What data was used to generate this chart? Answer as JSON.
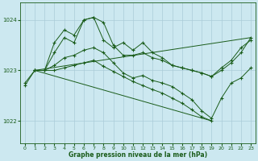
{
  "title": "Graphe pression niveau de la mer (hPa)",
  "bg_color": "#cce8f0",
  "line_color": "#1a5c1a",
  "grid_color": "#aaccd8",
  "xlim": [
    -0.5,
    23.5
  ],
  "ylim": [
    1021.55,
    1024.35
  ],
  "yticks": [
    1022,
    1023,
    1024
  ],
  "xticks": [
    0,
    1,
    2,
    3,
    4,
    5,
    6,
    7,
    8,
    9,
    10,
    11,
    12,
    13,
    14,
    15,
    16,
    17,
    18,
    19,
    20,
    21,
    22,
    23
  ],
  "upper_line": {
    "x": [
      1,
      23
    ],
    "y": [
      1023.0,
      1023.65
    ]
  },
  "lower_line": {
    "x": [
      1,
      19
    ],
    "y": [
      1023.0,
      1022.0
    ]
  },
  "series1": {
    "x": [
      0,
      1,
      2,
      3,
      4,
      5,
      6,
      7,
      8,
      9,
      10,
      11,
      12,
      13,
      14,
      15,
      16,
      17,
      18,
      19,
      20,
      21,
      22,
      23
    ],
    "y": [
      1022.75,
      1023.0,
      1023.0,
      1023.35,
      1023.65,
      1023.55,
      1024.0,
      1024.05,
      1023.95,
      1023.5,
      1023.3,
      1023.3,
      1023.35,
      1023.25,
      1023.2,
      1023.1,
      1023.05,
      1023.0,
      1022.95,
      1022.88,
      1023.0,
      1023.15,
      1023.35,
      1023.65
    ]
  },
  "series2": {
    "x": [
      1,
      2,
      3,
      4,
      5,
      6,
      7,
      8,
      9,
      10,
      11,
      12,
      13,
      14,
      15,
      16,
      17,
      18,
      19,
      20,
      21,
      22,
      23
    ],
    "y": [
      1023.0,
      1023.0,
      1023.55,
      1023.8,
      1023.7,
      1024.0,
      1024.05,
      1023.6,
      1023.45,
      1023.55,
      1023.4,
      1023.55,
      1023.35,
      1023.25,
      1023.1,
      1023.05,
      1023.0,
      1022.95,
      1022.88,
      1023.05,
      1023.2,
      1023.45,
      1023.6
    ]
  },
  "series_lower_zigzag": {
    "x": [
      1,
      2,
      3,
      4,
      5,
      6,
      7,
      8,
      9,
      10,
      11,
      12,
      13,
      14,
      15,
      16,
      17,
      18,
      19,
      20,
      21,
      22,
      23
    ],
    "y": [
      1023.0,
      1023.0,
      1023.1,
      1023.25,
      1023.3,
      1023.4,
      1023.45,
      1023.35,
      1023.15,
      1022.95,
      1022.85,
      1022.9,
      1022.8,
      1022.75,
      1022.68,
      1022.55,
      1022.42,
      1022.2,
      1022.05,
      1022.45,
      1022.75,
      1022.85,
      1023.05
    ]
  },
  "series_bottom": {
    "x": [
      0,
      1,
      2,
      3,
      4,
      5,
      6,
      7,
      8,
      9,
      10,
      11,
      12,
      13,
      14,
      15,
      16,
      17,
      18,
      19
    ],
    "y": [
      1022.7,
      1023.0,
      1023.0,
      1023.0,
      1023.05,
      1023.1,
      1023.15,
      1023.2,
      1023.08,
      1022.98,
      1022.88,
      1022.78,
      1022.7,
      1022.62,
      1022.55,
      1022.45,
      1022.35,
      1022.22,
      1022.08,
      1022.0
    ]
  },
  "spikes_left": {
    "x": [
      3,
      4,
      5,
      6,
      6,
      7,
      7,
      8,
      8,
      9
    ],
    "y": [
      1023.35,
      1023.65,
      1023.55,
      1024.0,
      1023.2,
      1024.05,
      1023.25,
      1023.95,
      1023.25,
      1023.5
    ]
  },
  "spikes_right": {
    "x": [
      10,
      11,
      11,
      12,
      12,
      13,
      14,
      14,
      15,
      16,
      17,
      18,
      18,
      19,
      19
    ],
    "y": [
      1023.3,
      1023.55,
      1022.85,
      1023.55,
      1022.9,
      1023.25,
      1023.2,
      1022.75,
      1022.68,
      1022.55,
      1022.42,
      1022.2,
      1022.05,
      1022.25,
      1022.05
    ]
  }
}
